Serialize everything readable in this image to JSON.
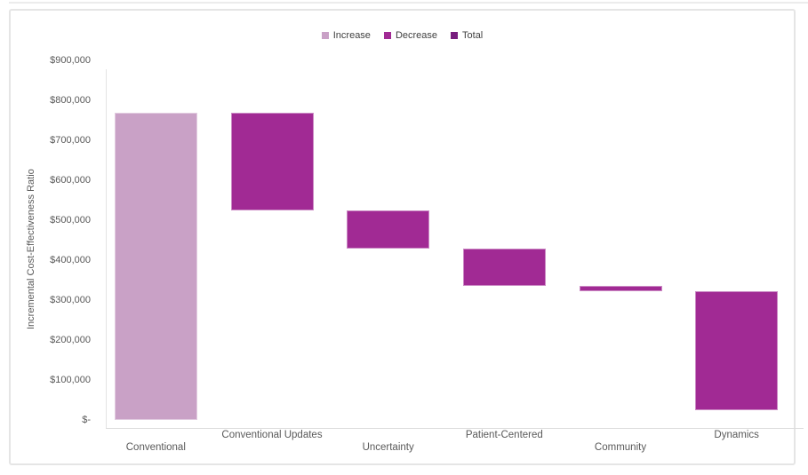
{
  "colors": {
    "increase": "#C9A1C6",
    "decrease": "#A12A94",
    "total": "#781E7E",
    "axis_text": "#595959",
    "legend_text": "#3F3F3F",
    "axis_line": "#DCDCDC",
    "frame_border": "#E5E5E5"
  },
  "legend": {
    "items": [
      {
        "label": "Increase",
        "role": "increase",
        "color": "#C9A1C6"
      },
      {
        "label": "Decrease",
        "role": "decrease",
        "color": "#A12A94"
      },
      {
        "label": "Total",
        "role": "total",
        "color": "#781E7E"
      }
    ]
  },
  "chart_data": {
    "type": "bar",
    "subtype": "waterfall",
    "title": "",
    "xlabel": "",
    "ylabel": "Incremental Cost-Effectiveness Ratio",
    "ylim": [
      0,
      900000
    ],
    "ytick_step": 100000,
    "ytick_labels_ascending": [
      "$-",
      "$100,000",
      "$200,000",
      "$300,000",
      "$400,000",
      "$500,000",
      "$600,000",
      "$700,000",
      "$800,000",
      "$900,000"
    ],
    "grid": false,
    "legend_position": "top-center",
    "legend_entries": [
      "Increase",
      "Decrease",
      "Total"
    ],
    "categories": [
      "Conventional",
      "Conventional Updates",
      "Uncertainty",
      "Patient-Centered",
      "Community",
      "Dynamics"
    ],
    "bars": [
      {
        "category": "Conventional",
        "start": 0,
        "end": 770000,
        "delta": 770000,
        "role": "increase",
        "label_row": "lower"
      },
      {
        "category": "Conventional Updates",
        "start": 770000,
        "end": 525000,
        "delta": -245000,
        "role": "decrease",
        "label_row": "upper"
      },
      {
        "category": "Uncertainty",
        "start": 525000,
        "end": 430000,
        "delta": -95000,
        "role": "decrease",
        "label_row": "lower"
      },
      {
        "category": "Patient-Centered",
        "start": 430000,
        "end": 335000,
        "delta": -95000,
        "role": "decrease",
        "label_row": "upper"
      },
      {
        "category": "Community",
        "start": 335000,
        "end": 323000,
        "delta": -12000,
        "role": "decrease",
        "label_row": "lower"
      },
      {
        "category": "Dynamics",
        "start": 323000,
        "end": 25000,
        "delta": -298000,
        "role": "decrease",
        "label_row": "upper"
      }
    ]
  }
}
